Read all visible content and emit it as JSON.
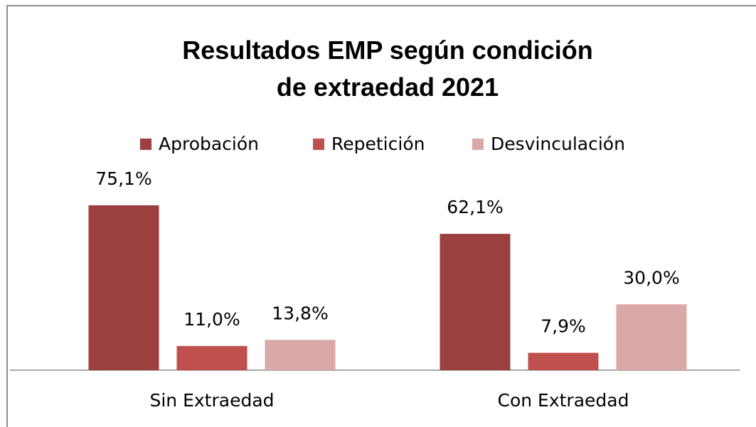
{
  "chart_data": {
    "type": "bar",
    "title": "Resultados EMP según condición de extraedad 2021",
    "categories": [
      "Sin Extraedad",
      "Con Extraedad"
    ],
    "series": [
      {
        "name": "Aprobación",
        "color": "#9b3f3f",
        "values": [
          75.1,
          62.1
        ],
        "value_labels": [
          "75,1%",
          "62,1%"
        ]
      },
      {
        "name": "Repetición",
        "color": "#c0504d",
        "values": [
          11.0,
          7.9
        ],
        "value_labels": [
          "11,0%",
          "7,9%"
        ]
      },
      {
        "name": "Desvinculación",
        "color": "#d9a8a7",
        "values": [
          13.8,
          30.0
        ],
        "value_labels": [
          "13,8%",
          "30,0%"
        ]
      }
    ],
    "legend": "top"
  }
}
